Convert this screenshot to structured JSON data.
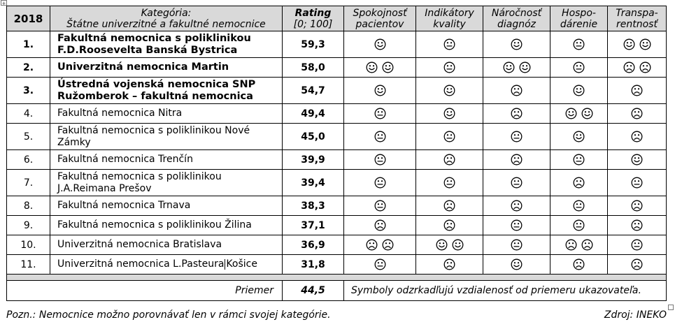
{
  "anchor_label": "+",
  "header": {
    "year": "2018",
    "category_line1": "Kategória:",
    "category_line2": "Štátne univerzitné a fakultné nemocnice",
    "rating_line1": "Rating",
    "rating_line2": "[0; 100]",
    "indicators": [
      {
        "line1": "Spokojnosť",
        "line2": "pacientov"
      },
      {
        "line1": "Indikátory",
        "line2": "kvality"
      },
      {
        "line1": "Náročnosť",
        "line2": "diagnóz"
      },
      {
        "line1": "Hospo-",
        "line2": "dárenie"
      },
      {
        "line1": "Transpa-",
        "line2": "rentnosť"
      }
    ]
  },
  "rows": [
    {
      "rank": "1.",
      "name": "Fakultná nemocnica s poliklinikou F.D.Roosevelta Banská Bystrica",
      "rating": "59,3",
      "bold": true,
      "symbols": [
        "smile",
        "neutral",
        "smile",
        "neutral",
        "smile-smile"
      ]
    },
    {
      "rank": "2.",
      "name": "Univerzitná nemocnica Martin",
      "rating": "58,0",
      "bold": true,
      "symbols": [
        "smile-smile",
        "neutral",
        "smile-smile",
        "neutral",
        "frown-frown"
      ]
    },
    {
      "rank": "3.",
      "name": "Ústredná vojenská nemocnica SNP Ružomberok – fakultná nemocnica",
      "rating": "54,7",
      "bold": true,
      "symbols": [
        "smile",
        "smile",
        "frown",
        "smile",
        "frown"
      ]
    },
    {
      "rank": "4.",
      "name": "Fakultná nemocnica Nitra",
      "rating": "49,4",
      "bold": false,
      "symbols": [
        "neutral",
        "smile",
        "frown",
        "smile-smile",
        "frown"
      ]
    },
    {
      "rank": "5.",
      "name": "Fakultná nemocnica s poliklinikou Nové Zámky",
      "rating": "45,0",
      "bold": false,
      "symbols": [
        "neutral",
        "neutral",
        "neutral",
        "smile",
        "frown"
      ]
    },
    {
      "rank": "6.",
      "name": "Fakultná nemocnica Trenčín",
      "rating": "39,9",
      "bold": false,
      "symbols": [
        "neutral",
        "frown",
        "frown",
        "neutral",
        "smile"
      ]
    },
    {
      "rank": "7.",
      "name": "Fakultná nemocnica s poliklinikou J.A.Reimana Prešov",
      "rating": "39,4",
      "bold": false,
      "symbols": [
        "neutral",
        "neutral",
        "neutral",
        "frown",
        "neutral"
      ]
    },
    {
      "rank": "8.",
      "name": "Fakultná nemocnica Trnava",
      "rating": "38,3",
      "bold": false,
      "symbols": [
        "neutral",
        "frown",
        "frown",
        "neutral",
        "frown"
      ]
    },
    {
      "rank": "9.",
      "name": "Fakultná nemocnica s poliklinikou Žilina",
      "rating": "37,1",
      "bold": false,
      "symbols": [
        "frown",
        "frown",
        "neutral",
        "neutral",
        "frown"
      ]
    },
    {
      "rank": "10.",
      "name": "Univerzitná  nemocnica Bratislava",
      "rating": "36,9",
      "bold": false,
      "symbols": [
        "frown-frown",
        "smile-smile",
        "neutral",
        "frown-frown",
        "neutral"
      ]
    },
    {
      "rank": "11.",
      "name_before_caret": "Univerzitná nemocnica L.Pasteura",
      "name_after_caret": "Košice",
      "rating": "31,8",
      "bold": false,
      "symbols": [
        "neutral",
        "frown",
        "smile",
        "frown",
        "frown"
      ]
    }
  ],
  "footer": {
    "priemer_label": "Priemer",
    "priemer_value": "44,5",
    "note": "Symboly odzrkadľujú vzdialenosť od priemeru ukazovateľa."
  },
  "pozn": "Pozn.: Nemocnice možno porovnávať len v rámci svojej kategórie.",
  "zdroj": "Zdroj: INEKO"
}
